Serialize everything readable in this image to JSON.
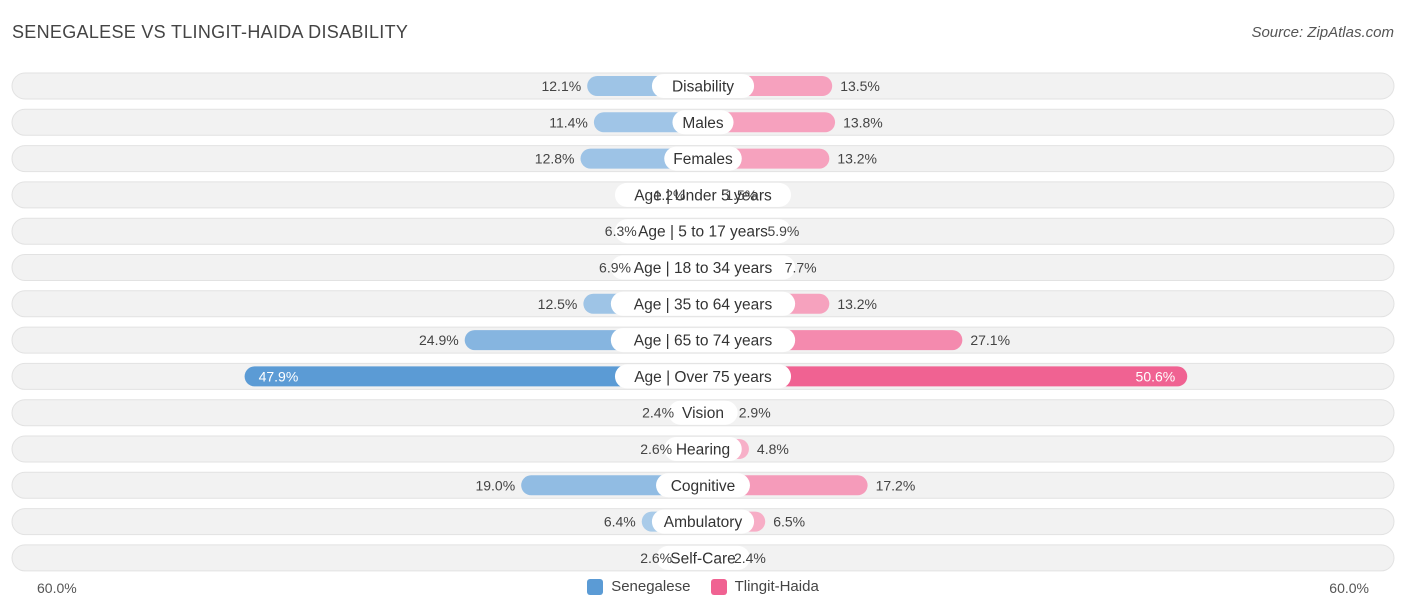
{
  "header": {
    "title": "SENEGALESE VS TLINGIT-HAIDA DISABILITY",
    "source": "Source: ZipAtlas.com"
  },
  "chart_data": {
    "type": "bar",
    "orientation": "diverging-horizontal",
    "title": "SENEGALESE VS TLINGIT-HAIDA DISABILITY",
    "categories": [
      "Disability",
      "Males",
      "Females",
      "Age | Under 5 years",
      "Age | 5 to 17 years",
      "Age | 18 to 34 years",
      "Age | 35 to 64 years",
      "Age | 65 to 74 years",
      "Age | Over 75 years",
      "Vision",
      "Hearing",
      "Cognitive",
      "Ambulatory",
      "Self-Care"
    ],
    "series": [
      {
        "name": "Senegalese",
        "color": "#5b9bd5",
        "values": [
          12.1,
          11.4,
          12.8,
          1.2,
          6.3,
          6.9,
          12.5,
          24.9,
          47.9,
          2.4,
          2.6,
          19.0,
          6.4,
          2.6
        ]
      },
      {
        "name": "Tlingit-Haida",
        "color": "#f06292",
        "values": [
          13.5,
          13.8,
          13.2,
          1.5,
          5.9,
          7.7,
          13.2,
          27.1,
          50.6,
          2.9,
          4.8,
          17.2,
          6.5,
          2.4
        ]
      }
    ],
    "xlim": [
      -60,
      60
    ],
    "axis_labels": {
      "left": "60.0%",
      "right": "60.0%"
    },
    "legend_position": "bottom-center"
  }
}
